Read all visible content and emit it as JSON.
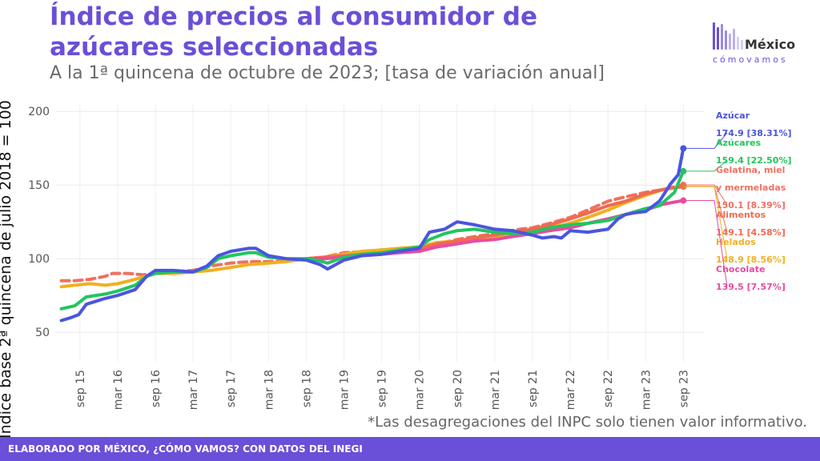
{
  "header": {
    "title": "Índice de precios al consumidor de azúcares seleccionadas",
    "subtitle": "A la 1ª quincena de octubre de 2023; [tasa de variación anual]"
  },
  "logo": {
    "name": "México",
    "tagline": "cómovamos",
    "icon": "bars-logo-icon"
  },
  "note": "*Las desagregaciones del INPC solo tienen valor informativo.",
  "footer": {
    "text": "ELABORADO POR MÉXICO, ¿CÓMO VAMOS? CON DATOS DEL INEGI"
  },
  "chart_data": {
    "type": "line",
    "title": "Índice de precios al consumidor de azúcares seleccionadas",
    "subtitle": "A la 1ª quincena de octubre de 2023; [tasa de variación anual]",
    "ylabel": "Índice base 2ª quincena de julio 2018 = 100",
    "xlabel": "",
    "ylim": [
      30,
      205
    ],
    "yticks": [
      50,
      100,
      150,
      200
    ],
    "x_range": [
      2015.35,
      2023.95
    ],
    "x_ticks": [
      {
        "label": "sep 15",
        "x": 2015.667
      },
      {
        "label": "mar 16",
        "x": 2016.167
      },
      {
        "label": "sep 16",
        "x": 2016.667
      },
      {
        "label": "mar 17",
        "x": 2017.167
      },
      {
        "label": "sep 17",
        "x": 2017.667
      },
      {
        "label": "mar 18",
        "x": 2018.167
      },
      {
        "label": "sep 18",
        "x": 2018.667
      },
      {
        "label": "mar 19",
        "x": 2019.167
      },
      {
        "label": "sep 19",
        "x": 2019.667
      },
      {
        "label": "mar 20",
        "x": 2020.167
      },
      {
        "label": "sep 20",
        "x": 2020.667
      },
      {
        "label": "mar 21",
        "x": 2021.167
      },
      {
        "label": "sep 21",
        "x": 2021.667
      },
      {
        "label": "mar 22",
        "x": 2022.167
      },
      {
        "label": "sep 22",
        "x": 2022.667
      },
      {
        "label": "mar 23",
        "x": 2023.167
      },
      {
        "label": "sep 23",
        "x": 2023.667
      }
    ],
    "grid": true,
    "legend": "direct labels at right",
    "series": [
      {
        "name": "Gelatina, miel y mermeladas",
        "color": "#f07060",
        "dashed": true,
        "label_name": "Gelatina, miel\ny mermeladas",
        "end_label": "150.1 [8.39%]",
        "points": [
          [
            2015.42,
            85
          ],
          [
            2015.6,
            85
          ],
          [
            2015.8,
            86
          ],
          [
            2016.0,
            88
          ],
          [
            2016.1,
            90
          ],
          [
            2016.3,
            90
          ],
          [
            2016.5,
            89
          ],
          [
            2016.667,
            90
          ],
          [
            2016.9,
            91
          ],
          [
            2017.167,
            92
          ],
          [
            2017.4,
            95
          ],
          [
            2017.667,
            97
          ],
          [
            2017.9,
            98
          ],
          [
            2018.167,
            98
          ],
          [
            2018.5,
            99
          ],
          [
            2018.667,
            100
          ],
          [
            2018.9,
            101
          ],
          [
            2019.167,
            104
          ],
          [
            2019.5,
            105
          ],
          [
            2019.667,
            106
          ],
          [
            2019.9,
            106
          ],
          [
            2020.167,
            107
          ],
          [
            2020.4,
            110
          ],
          [
            2020.667,
            113
          ],
          [
            2020.9,
            115
          ],
          [
            2021.167,
            117
          ],
          [
            2021.5,
            120
          ],
          [
            2021.667,
            121
          ],
          [
            2021.9,
            124
          ],
          [
            2022.167,
            128
          ],
          [
            2022.4,
            133
          ],
          [
            2022.667,
            139
          ],
          [
            2022.9,
            142
          ],
          [
            2023.167,
            145
          ],
          [
            2023.4,
            147
          ],
          [
            2023.667,
            150.1
          ]
        ]
      },
      {
        "name": "Helados",
        "color": "#f0b020",
        "label_name": "Helados",
        "end_label": "148.9 [8.56%]",
        "points": [
          [
            2015.42,
            81
          ],
          [
            2015.6,
            82
          ],
          [
            2015.8,
            83
          ],
          [
            2016.0,
            82
          ],
          [
            2016.167,
            83
          ],
          [
            2016.4,
            86
          ],
          [
            2016.667,
            90
          ],
          [
            2016.9,
            90
          ],
          [
            2017.167,
            91
          ],
          [
            2017.4,
            92
          ],
          [
            2017.667,
            94
          ],
          [
            2017.9,
            96
          ],
          [
            2018.167,
            97
          ],
          [
            2018.4,
            98
          ],
          [
            2018.667,
            100
          ],
          [
            2018.9,
            101
          ],
          [
            2019.167,
            103
          ],
          [
            2019.4,
            105
          ],
          [
            2019.667,
            106
          ],
          [
            2019.9,
            107
          ],
          [
            2020.167,
            108
          ],
          [
            2020.4,
            111
          ],
          [
            2020.667,
            112
          ],
          [
            2020.9,
            114
          ],
          [
            2021.167,
            115
          ],
          [
            2021.4,
            117
          ],
          [
            2021.667,
            119
          ],
          [
            2021.9,
            121
          ],
          [
            2022.167,
            124
          ],
          [
            2022.4,
            128
          ],
          [
            2022.667,
            133
          ],
          [
            2022.9,
            138
          ],
          [
            2023.167,
            143
          ],
          [
            2023.4,
            147
          ],
          [
            2023.667,
            148.9
          ]
        ]
      },
      {
        "name": "Alimentos",
        "color": "#f06a50",
        "label_name": "Alimentos",
        "end_label": "149.1 [4.58%]",
        "points": [
          [
            2018.667,
            100
          ],
          [
            2018.9,
            101
          ],
          [
            2019.167,
            102
          ],
          [
            2019.4,
            103
          ],
          [
            2019.667,
            104
          ],
          [
            2019.9,
            105
          ],
          [
            2020.167,
            107
          ],
          [
            2020.4,
            110
          ],
          [
            2020.667,
            112
          ],
          [
            2020.9,
            114
          ],
          [
            2021.167,
            116
          ],
          [
            2021.4,
            118
          ],
          [
            2021.667,
            120
          ],
          [
            2021.9,
            123
          ],
          [
            2022.167,
            127
          ],
          [
            2022.4,
            131
          ],
          [
            2022.667,
            136
          ],
          [
            2022.9,
            139
          ],
          [
            2023.167,
            144
          ],
          [
            2023.4,
            147
          ],
          [
            2023.667,
            149.1
          ]
        ]
      },
      {
        "name": "Chocolate",
        "color": "#e84ba0",
        "label_name": "Chocolate",
        "end_label": "139.5 [7.57%]",
        "points": [
          [
            2018.667,
            100
          ],
          [
            2018.9,
            100
          ],
          [
            2019.167,
            101
          ],
          [
            2019.4,
            102
          ],
          [
            2019.667,
            103
          ],
          [
            2019.9,
            104
          ],
          [
            2020.167,
            105
          ],
          [
            2020.4,
            108
          ],
          [
            2020.667,
            110
          ],
          [
            2020.9,
            112
          ],
          [
            2021.167,
            113
          ],
          [
            2021.4,
            115
          ],
          [
            2021.667,
            117
          ],
          [
            2021.9,
            119
          ],
          [
            2022.167,
            121
          ],
          [
            2022.4,
            124
          ],
          [
            2022.667,
            127
          ],
          [
            2022.9,
            130
          ],
          [
            2023.167,
            133
          ],
          [
            2023.4,
            137
          ],
          [
            2023.667,
            139.5
          ]
        ]
      },
      {
        "name": "Azúcares",
        "color": "#22c55e",
        "label_name": "Azúcares",
        "end_label": "159.4 [22.50%]",
        "points": [
          [
            2015.42,
            66
          ],
          [
            2015.6,
            68
          ],
          [
            2015.75,
            74
          ],
          [
            2016.0,
            76
          ],
          [
            2016.167,
            78
          ],
          [
            2016.4,
            82
          ],
          [
            2016.55,
            88
          ],
          [
            2016.667,
            90
          ],
          [
            2016.9,
            91
          ],
          [
            2017.167,
            91
          ],
          [
            2017.35,
            94
          ],
          [
            2017.5,
            100
          ],
          [
            2017.667,
            102
          ],
          [
            2017.9,
            104
          ],
          [
            2018.0,
            104
          ],
          [
            2018.167,
            101
          ],
          [
            2018.4,
            100
          ],
          [
            2018.667,
            100
          ],
          [
            2018.8,
            99
          ],
          [
            2018.95,
            97
          ],
          [
            2019.167,
            101
          ],
          [
            2019.4,
            103
          ],
          [
            2019.667,
            104
          ],
          [
            2019.9,
            106
          ],
          [
            2020.167,
            108
          ],
          [
            2020.3,
            113
          ],
          [
            2020.5,
            117
          ],
          [
            2020.667,
            119
          ],
          [
            2020.9,
            120
          ],
          [
            2021.167,
            118
          ],
          [
            2021.4,
            117
          ],
          [
            2021.667,
            118
          ],
          [
            2021.9,
            121
          ],
          [
            2022.167,
            123
          ],
          [
            2022.4,
            124
          ],
          [
            2022.667,
            126
          ],
          [
            2022.9,
            130
          ],
          [
            2023.167,
            134
          ],
          [
            2023.35,
            136
          ],
          [
            2023.55,
            145
          ],
          [
            2023.667,
            159.4
          ]
        ]
      },
      {
        "name": "Azúcar",
        "color": "#4a55e0",
        "label_name": "Azúcar",
        "end_label": "174.9 [38.31%]",
        "points": [
          [
            2015.42,
            58
          ],
          [
            2015.55,
            60
          ],
          [
            2015.65,
            62
          ],
          [
            2015.75,
            69
          ],
          [
            2016.0,
            73
          ],
          [
            2016.167,
            75
          ],
          [
            2016.4,
            79
          ],
          [
            2016.55,
            88
          ],
          [
            2016.667,
            92
          ],
          [
            2016.9,
            92
          ],
          [
            2017.167,
            91
          ],
          [
            2017.35,
            95
          ],
          [
            2017.5,
            102
          ],
          [
            2017.667,
            105
          ],
          [
            2017.9,
            107
          ],
          [
            2018.0,
            107
          ],
          [
            2018.167,
            102
          ],
          [
            2018.4,
            100
          ],
          [
            2018.667,
            99
          ],
          [
            2018.85,
            96
          ],
          [
            2018.95,
            93
          ],
          [
            2019.167,
            99
          ],
          [
            2019.4,
            102
          ],
          [
            2019.667,
            103
          ],
          [
            2019.9,
            105
          ],
          [
            2020.167,
            107
          ],
          [
            2020.3,
            118
          ],
          [
            2020.5,
            120
          ],
          [
            2020.667,
            125
          ],
          [
            2020.9,
            123
          ],
          [
            2021.167,
            120
          ],
          [
            2021.4,
            119
          ],
          [
            2021.667,
            116
          ],
          [
            2021.8,
            114
          ],
          [
            2021.95,
            115
          ],
          [
            2022.05,
            114
          ],
          [
            2022.167,
            119
          ],
          [
            2022.4,
            118
          ],
          [
            2022.667,
            120
          ],
          [
            2022.8,
            127
          ],
          [
            2022.9,
            130
          ],
          [
            2023.0,
            131
          ],
          [
            2023.167,
            132
          ],
          [
            2023.35,
            139
          ],
          [
            2023.5,
            151
          ],
          [
            2023.6,
            157
          ],
          [
            2023.667,
            174.9
          ]
        ]
      }
    ]
  }
}
